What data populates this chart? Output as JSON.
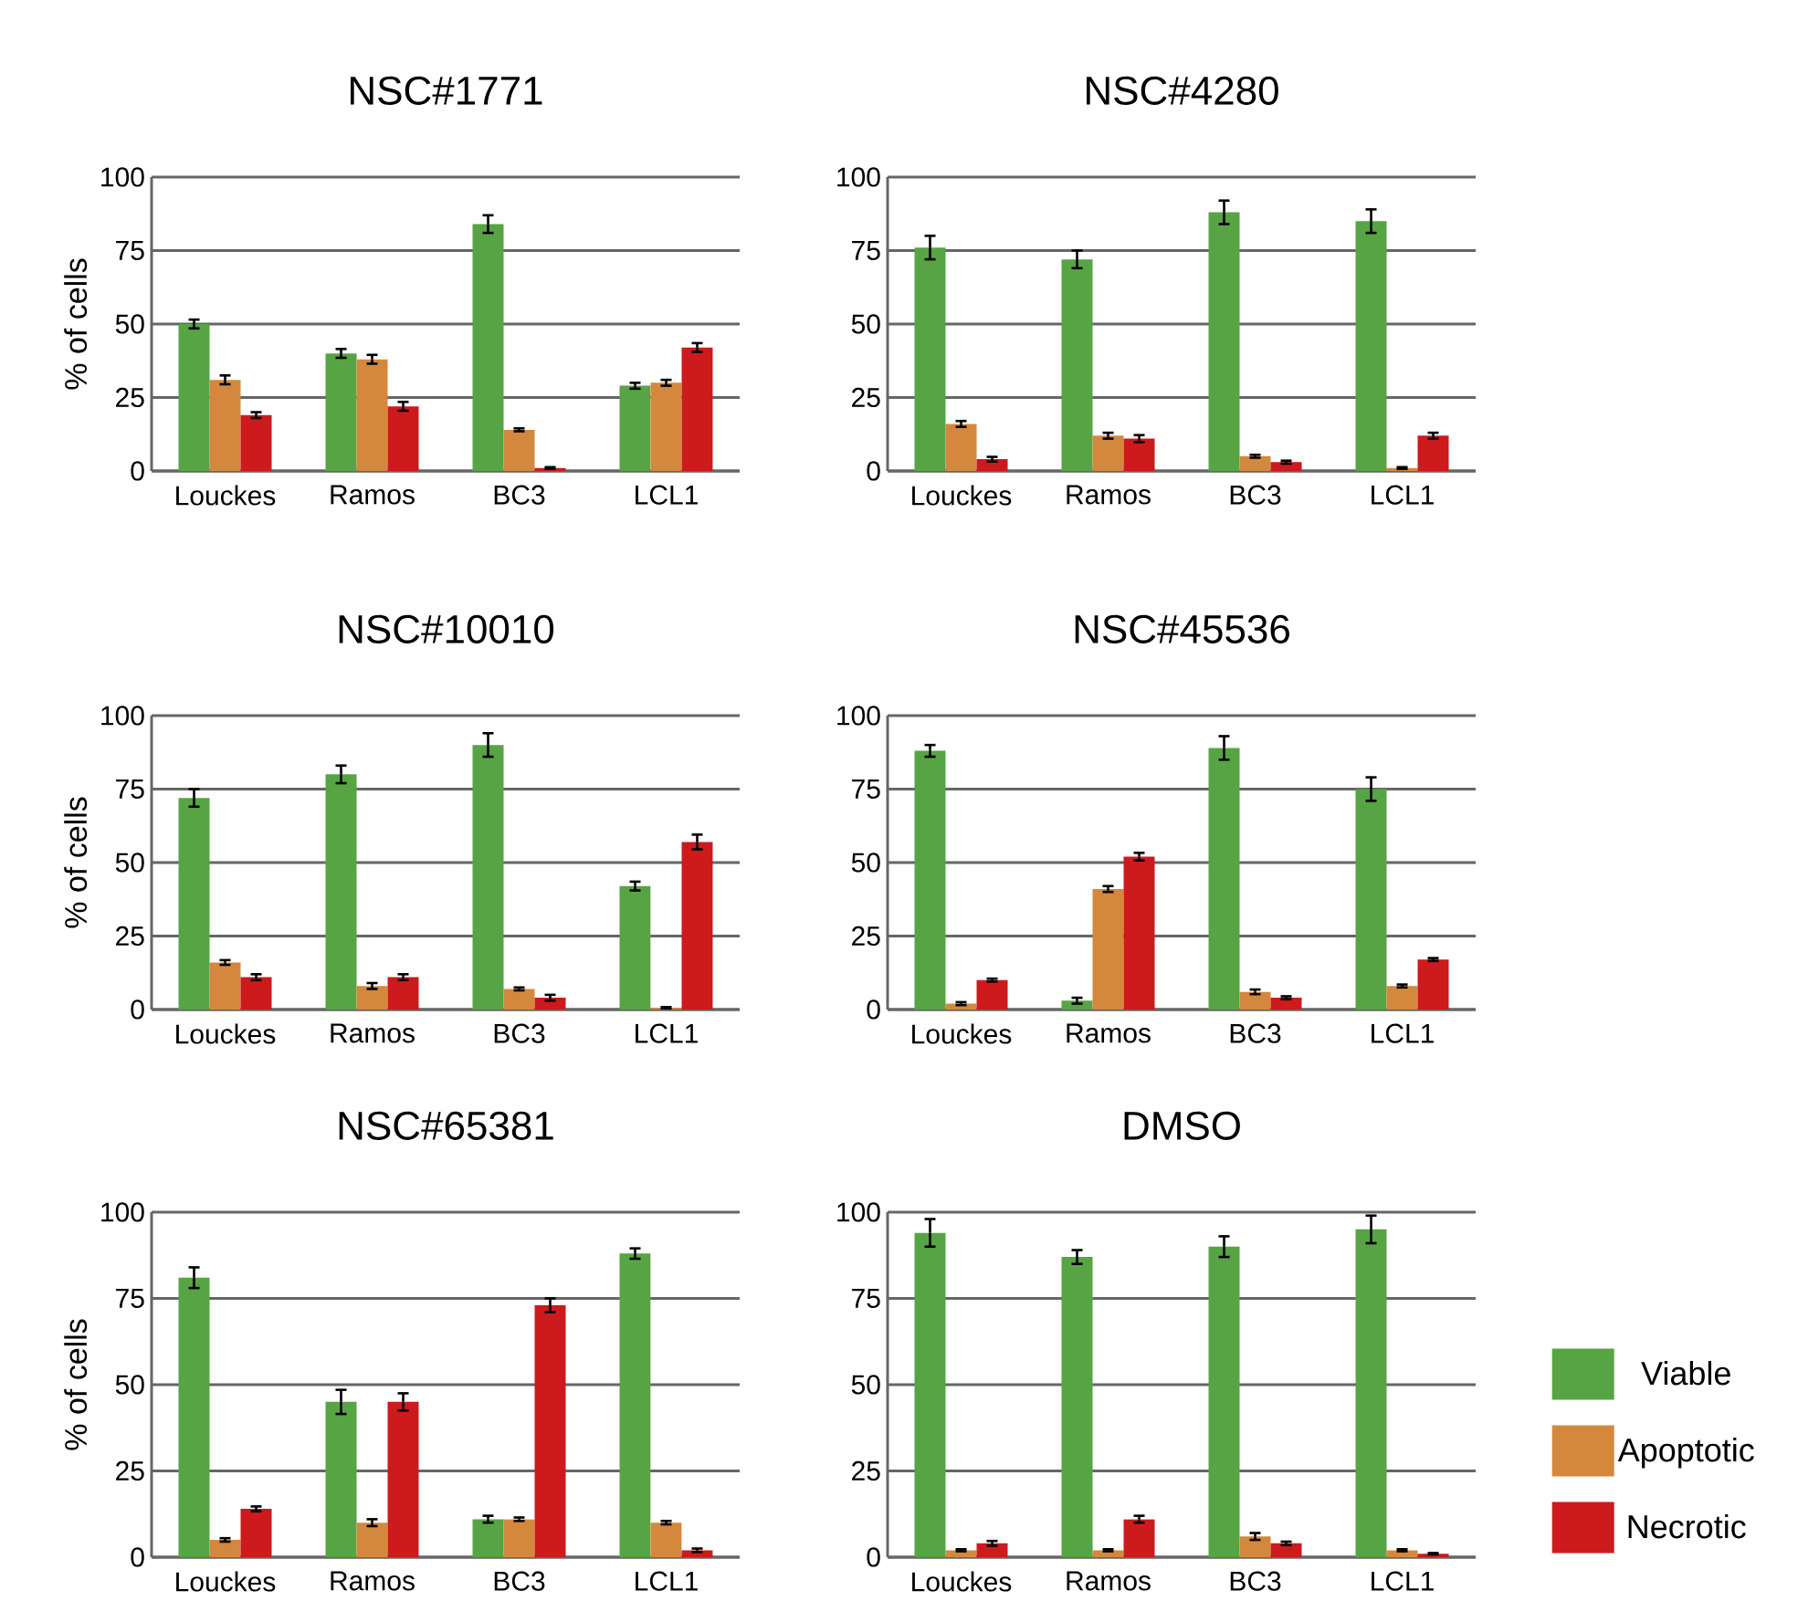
{
  "chart_data": [
    {
      "type": "bar",
      "title": "NSC#1771",
      "ylabel": "% of cells",
      "categories": [
        "Louckes",
        "Ramos",
        "BC3",
        "LCL1"
      ],
      "ylim": [
        0,
        100
      ],
      "yticks": [
        0,
        25,
        50,
        75,
        100
      ],
      "grid": "y",
      "series": [
        {
          "color": "#57a444",
          "values": [
            50,
            40,
            84,
            29
          ],
          "errors": [
            1.5,
            1.5,
            3,
            1
          ]
        },
        {
          "color": "#d4883e",
          "values": [
            31,
            38,
            14,
            30
          ],
          "errors": [
            1.5,
            1.5,
            0.5,
            1
          ]
        },
        {
          "color": "#cc1a1d",
          "values": [
            19,
            22,
            1,
            42
          ],
          "errors": [
            1,
            1.5,
            0.3,
            1.5
          ]
        }
      ]
    },
    {
      "type": "bar",
      "title": "NSC#4280",
      "categories": [
        "Louckes",
        "Ramos",
        "BC3",
        "LCL1"
      ],
      "ylim": [
        0,
        100
      ],
      "yticks": [
        0,
        25,
        50,
        75,
        100
      ],
      "grid": "y",
      "series": [
        {
          "color": "#57a444",
          "values": [
            76,
            72,
            88,
            85
          ],
          "errors": [
            4,
            3,
            4,
            4
          ]
        },
        {
          "color": "#d4883e",
          "values": [
            16,
            12,
            5,
            1
          ],
          "errors": [
            1,
            1,
            0.5,
            0.3
          ]
        },
        {
          "color": "#cc1a1d",
          "values": [
            4,
            11,
            3,
            12
          ],
          "errors": [
            0.8,
            1.2,
            0.5,
            1
          ]
        }
      ]
    },
    {
      "type": "bar",
      "title": "NSC#10010",
      "ylabel": "% of cells",
      "categories": [
        "Louckes",
        "Ramos",
        "BC3",
        "LCL1"
      ],
      "ylim": [
        0,
        100
      ],
      "yticks": [
        0,
        25,
        50,
        75,
        100
      ],
      "grid": "y",
      "series": [
        {
          "color": "#57a444",
          "values": [
            72,
            80,
            90,
            42
          ],
          "errors": [
            3,
            3,
            4,
            1.5
          ]
        },
        {
          "color": "#d4883e",
          "values": [
            16,
            8,
            7,
            0.5
          ],
          "errors": [
            0.8,
            1,
            0.5,
            0.3
          ]
        },
        {
          "color": "#cc1a1d",
          "values": [
            11,
            11,
            4,
            57
          ],
          "errors": [
            1,
            1,
            1,
            2.5
          ]
        }
      ]
    },
    {
      "type": "bar",
      "title": "NSC#45536",
      "categories": [
        "Louckes",
        "Ramos",
        "BC3",
        "LCL1"
      ],
      "ylim": [
        0,
        100
      ],
      "yticks": [
        0,
        25,
        50,
        75,
        100
      ],
      "grid": "y",
      "series": [
        {
          "color": "#57a444",
          "values": [
            88,
            3,
            89,
            75
          ],
          "errors": [
            2,
            1,
            4,
            4
          ]
        },
        {
          "color": "#d4883e",
          "values": [
            2,
            41,
            6,
            8
          ],
          "errors": [
            0.5,
            1,
            0.8,
            0.5
          ]
        },
        {
          "color": "#cc1a1d",
          "values": [
            10,
            52,
            4,
            17
          ],
          "errors": [
            0.5,
            1.3,
            0.5,
            0.5
          ]
        }
      ]
    },
    {
      "type": "bar",
      "title": "NSC#65381",
      "ylabel": "% of cells",
      "categories": [
        "Louckes",
        "Ramos",
        "BC3",
        "LCL1"
      ],
      "ylim": [
        0,
        100
      ],
      "yticks": [
        0,
        25,
        50,
        75,
        100
      ],
      "grid": "y",
      "series": [
        {
          "color": "#57a444",
          "values": [
            81,
            45,
            11,
            88
          ],
          "errors": [
            3,
            3.5,
            1,
            1.5
          ]
        },
        {
          "color": "#d4883e",
          "values": [
            5,
            10,
            11,
            10
          ],
          "errors": [
            0.5,
            1,
            0.5,
            0.5
          ]
        },
        {
          "color": "#cc1a1d",
          "values": [
            14,
            45,
            73,
            2
          ],
          "errors": [
            0.7,
            2.5,
            2,
            0.5
          ]
        }
      ]
    },
    {
      "type": "bar",
      "title": "DMSO",
      "categories": [
        "Louckes",
        "Ramos",
        "BC3",
        "LCL1"
      ],
      "ylim": [
        0,
        100
      ],
      "yticks": [
        0,
        25,
        50,
        75,
        100
      ],
      "grid": "y",
      "legend": "right",
      "series": [
        {
          "name": "Viable",
          "color": "#57a444",
          "values": [
            94,
            87,
            90,
            95
          ],
          "errors": [
            4,
            2,
            3,
            4
          ]
        },
        {
          "name": "Apoptotic",
          "color": "#d4883e",
          "values": [
            2,
            2,
            6,
            2
          ],
          "errors": [
            0.3,
            0.3,
            1,
            0.3
          ]
        },
        {
          "name": "Necrotic",
          "color": "#cc1a1d",
          "values": [
            4,
            11,
            4,
            1
          ],
          "errors": [
            0.7,
            1,
            0.5,
            0.2
          ]
        }
      ]
    }
  ]
}
